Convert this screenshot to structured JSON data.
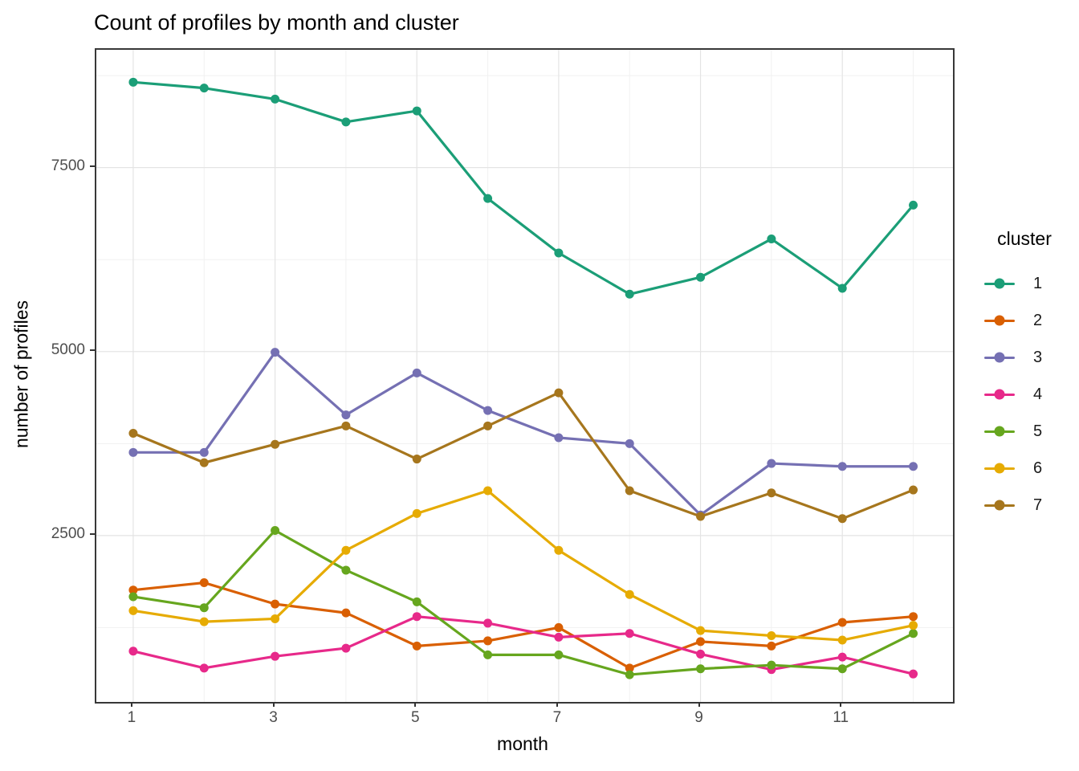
{
  "title": "Count of profiles by month and cluster",
  "chart_data": {
    "type": "line",
    "title": "Count of profiles by month and cluster",
    "xlabel": "month",
    "ylabel": "number of profiles",
    "legend_title": "cluster",
    "legend_position": "right",
    "grid": true,
    "x": [
      1,
      2,
      3,
      4,
      5,
      6,
      7,
      8,
      9,
      10,
      11,
      12
    ],
    "x_ticks_major": [
      1,
      3,
      5,
      7,
      9,
      11
    ],
    "x_ticks_minor": [
      2,
      4,
      6,
      8,
      10,
      12
    ],
    "y_ticks_major": [
      2500,
      5000,
      7500
    ],
    "y_ticks_minor": [
      1250,
      3750,
      6250,
      8750
    ],
    "xlim": [
      0.48,
      12.56
    ],
    "ylim": [
      240,
      9100
    ],
    "series": [
      {
        "name": "1",
        "color": "#1b9e77",
        "values": [
          8660,
          8580,
          8430,
          8120,
          8270,
          7080,
          6340,
          5780,
          6010,
          6530,
          5860,
          6990
        ]
      },
      {
        "name": "2",
        "color": "#d95f02",
        "values": [
          1760,
          1860,
          1570,
          1450,
          1000,
          1070,
          1250,
          700,
          1060,
          1000,
          1320,
          1400
        ]
      },
      {
        "name": "3",
        "color": "#7570b3",
        "values": [
          3630,
          3630,
          4990,
          4140,
          4710,
          4200,
          3830,
          3750,
          2780,
          3480,
          3440,
          3440
        ]
      },
      {
        "name": "4",
        "color": "#e7298a",
        "values": [
          930,
          700,
          860,
          970,
          1400,
          1310,
          1120,
          1170,
          890,
          680,
          850,
          620
        ]
      },
      {
        "name": "5",
        "color": "#66a61e",
        "values": [
          1670,
          1520,
          2570,
          2030,
          1600,
          880,
          880,
          610,
          690,
          740,
          690,
          1170
        ]
      },
      {
        "name": "6",
        "color": "#e6ab02",
        "values": [
          1480,
          1330,
          1370,
          2300,
          2800,
          3110,
          2300,
          1700,
          1210,
          1140,
          1080,
          1280
        ]
      },
      {
        "name": "7",
        "color": "#a6761d",
        "values": [
          3890,
          3490,
          3740,
          3990,
          3540,
          3990,
          4440,
          3110,
          2760,
          3080,
          2730,
          3120
        ]
      }
    ],
    "style": {
      "grid_major_color": "#e4e4e4",
      "grid_minor_color": "#f1f1f1",
      "panel_border_color": "#383838",
      "tick_color": "#333333",
      "tick_label_color": "#4d4d4d",
      "line_width": 3.2,
      "point_radius": 5.5
    }
  }
}
